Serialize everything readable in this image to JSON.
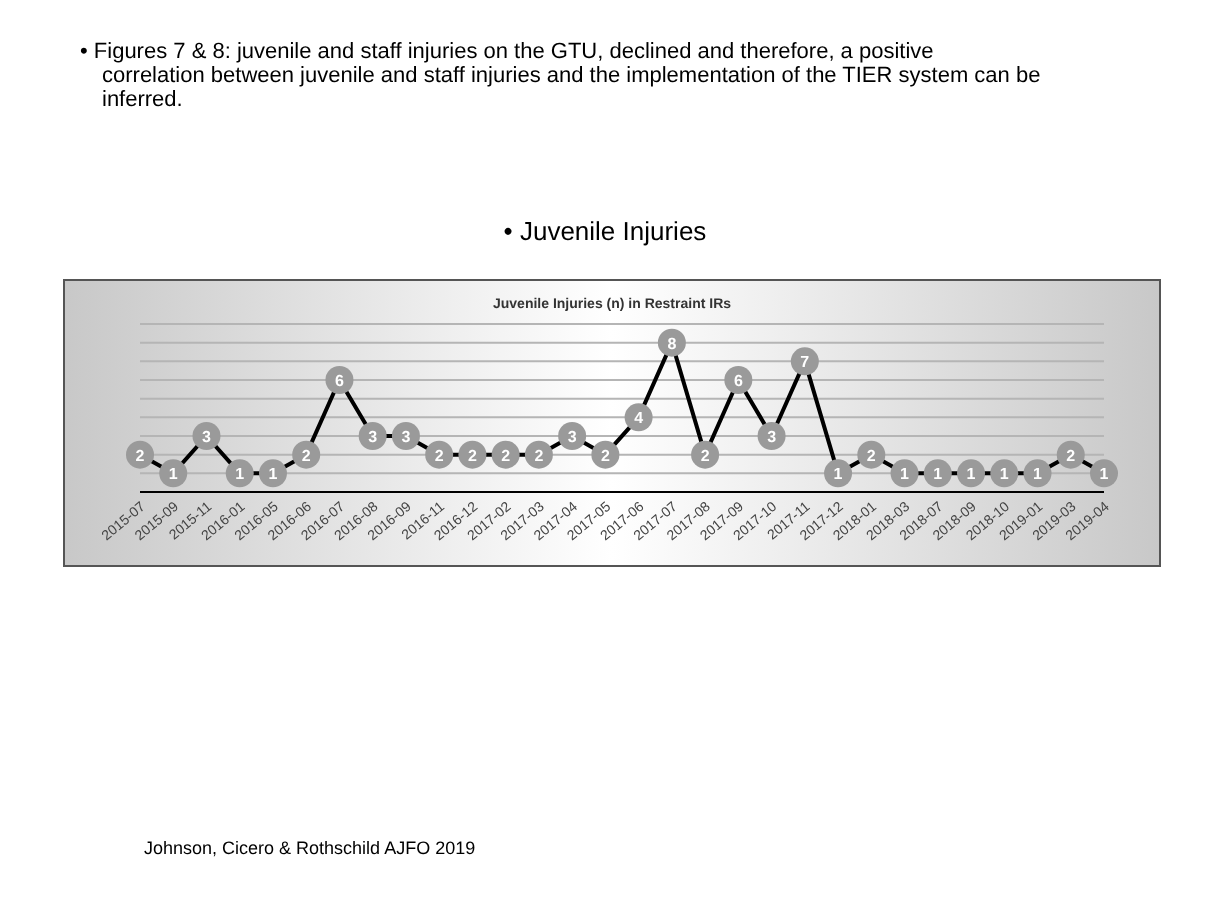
{
  "chart_data": {
    "type": "line",
    "title": "Juvenile Injuries (n) in Restraint IRs",
    "subtitle": "• Juvenile Injuries",
    "annotations": [
      "• Figures 7 & 8: juvenile and staff injuries on the GTU, declined and therefore, a positive correlation between juvenile and staff injuries and the implementation of the TIER system can be inferred.",
      "Johnson, Cicero & Rothschild AJFO 2019"
    ],
    "categories": [
      "2015-07",
      "2015-09",
      "2015-11",
      "2016-01",
      "2016-05",
      "2016-06",
      "2016-07",
      "2016-08",
      "2016-09",
      "2016-11",
      "2016-12",
      "2017-02",
      "2017-03",
      "2017-04",
      "2017-05",
      "2017-06",
      "2017-07",
      "2017-08",
      "2017-09",
      "2017-10",
      "2017-11",
      "2017-12",
      "2018-01",
      "2018-03",
      "2018-07",
      "2018-09",
      "2018-10",
      "2019-01",
      "2019-03",
      "2019-04"
    ],
    "series": [
      {
        "color": "#000000",
        "values": [
          2,
          1,
          3,
          1,
          1,
          2,
          6,
          3,
          3,
          2,
          2,
          2,
          2,
          3,
          2,
          4,
          8,
          2,
          6,
          3,
          7,
          1,
          2,
          1,
          1,
          1,
          1,
          1,
          2,
          1
        ]
      }
    ],
    "ylim": [
      0,
      9
    ],
    "yticks": [
      {
        "value": 0,
        "label": null
      },
      {
        "value": 1,
        "label": null
      },
      {
        "value": 2,
        "label": null
      },
      {
        "value": 3,
        "label": null
      },
      {
        "value": 4,
        "label": null
      },
      {
        "value": 5,
        "label": null
      },
      {
        "value": 6,
        "label": null
      },
      {
        "value": 7,
        "label": null
      },
      {
        "value": 8,
        "label": null
      },
      {
        "value": 9,
        "label": null
      }
    ],
    "grid": "y",
    "tick_labels": "x",
    "marker": "circle",
    "data_labels": true
  }
}
